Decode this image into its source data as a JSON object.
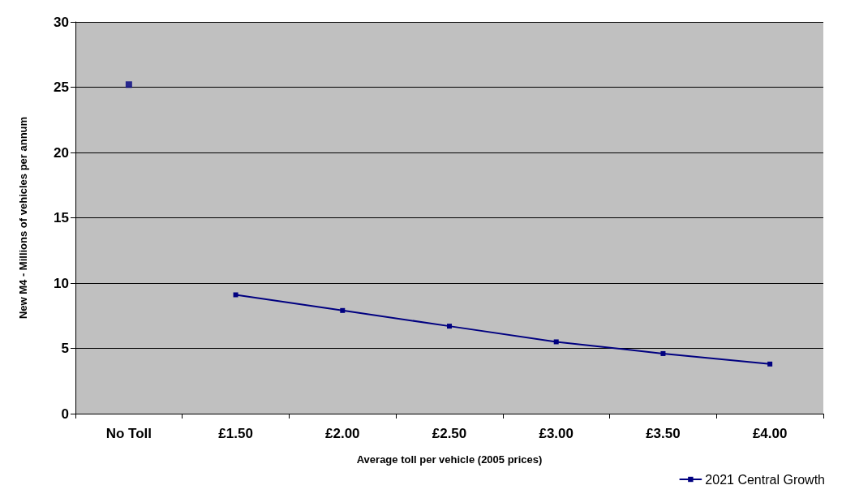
{
  "chart_data": {
    "type": "line",
    "xlabel": "Average toll per vehicle (2005 prices)",
    "ylabel": "New M4 - Millions of vehicles per annum",
    "categories": [
      "No Toll",
      "£1.50",
      "£2.00",
      "£2.50",
      "£3.00",
      "£3.50",
      "£4.00"
    ],
    "series": [
      {
        "type": "scatter",
        "color": "#000080",
        "values": [
          25.2,
          null,
          null,
          null,
          null,
          null,
          null
        ]
      },
      {
        "name": "2021 Central Growth",
        "color": "#000080",
        "values": [
          null,
          9.1,
          7.9,
          6.7,
          5.5,
          4.6,
          3.8
        ]
      }
    ],
    "ylim": [
      0,
      30
    ],
    "yticks": [
      0,
      5,
      10,
      15,
      20,
      25,
      30
    ],
    "grid": "y",
    "legend": "bottom right",
    "marker": "square",
    "line_style": "solid"
  }
}
